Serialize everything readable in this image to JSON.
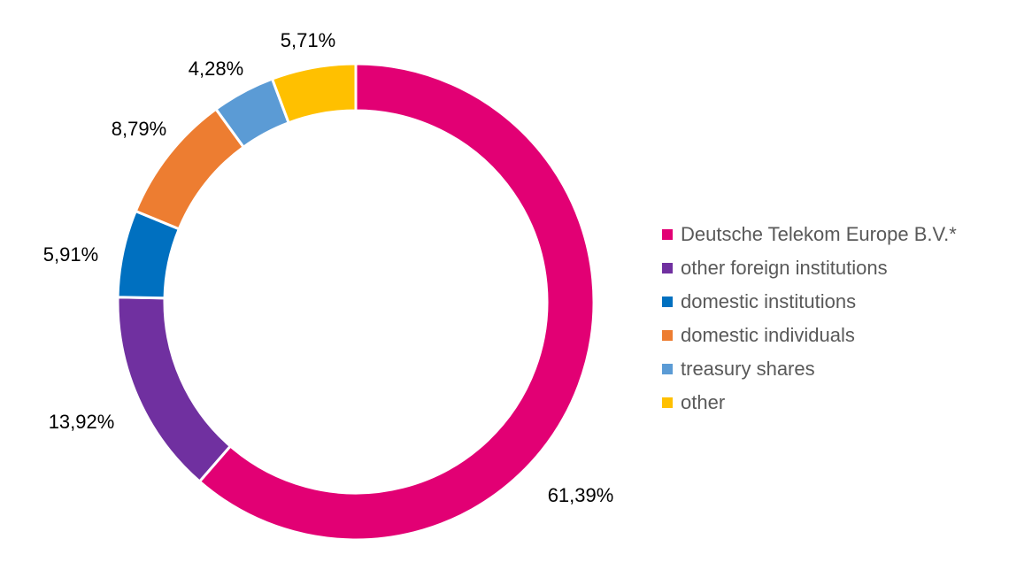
{
  "chart_data": {
    "type": "pie",
    "variant": "donut",
    "title": "",
    "legend_position": "right",
    "start": "top",
    "direction": "clockwise",
    "slices": [
      {
        "name": "Deutsche Telekom Europe B.V.*",
        "value": 61.39,
        "label": "61,39%",
        "color": "#E20074"
      },
      {
        "name": "other foreign institutions",
        "value": 13.92,
        "label": "13,92%",
        "color": "#7030A0"
      },
      {
        "name": "domestic institutions",
        "value": 5.91,
        "label": "5,91%",
        "color": "#0070C0"
      },
      {
        "name": "domestic individuals",
        "value": 8.79,
        "label": "8,79%",
        "color": "#ED7D31"
      },
      {
        "name": "treasury shares",
        "value": 4.28,
        "label": "4,28%",
        "color": "#5B9BD5"
      },
      {
        "name": "other",
        "value": 5.71,
        "label": "5,71%",
        "color": "#FFC000"
      }
    ]
  }
}
